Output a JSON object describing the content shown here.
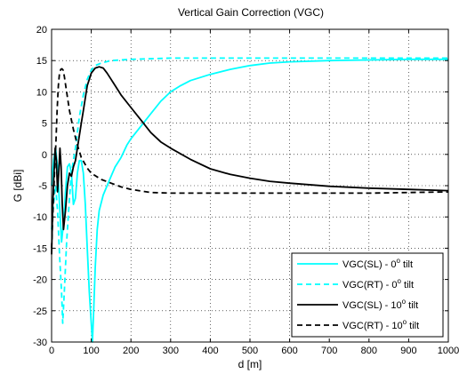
{
  "chart_data": {
    "type": "line",
    "title": "Vertical Gain Correction (VGC)",
    "xlabel": "d [m]",
    "ylabel": "G [dBi]",
    "xlim": [
      0,
      1000
    ],
    "ylim": [
      -30,
      20
    ],
    "xticks": [
      0,
      100,
      200,
      300,
      400,
      500,
      600,
      700,
      800,
      900,
      1000
    ],
    "yticks": [
      -30,
      -25,
      -20,
      -15,
      -10,
      -5,
      0,
      5,
      10,
      15,
      20
    ],
    "grid": true,
    "legend_position": "bottom-right",
    "series": [
      {
        "name": "VGC(SL) - 0",
        "name_sup": "o",
        "name_suffix": " tilt",
        "color": "#00ffff",
        "dash": "solid",
        "points": [
          [
            0,
            -5
          ],
          [
            5,
            -1
          ],
          [
            10,
            1
          ],
          [
            15,
            -2
          ],
          [
            20,
            -8
          ],
          [
            25,
            -14
          ],
          [
            30,
            -11
          ],
          [
            35,
            -6
          ],
          [
            40,
            -2
          ],
          [
            45,
            -1.5
          ],
          [
            50,
            -3
          ],
          [
            55,
            -8
          ],
          [
            60,
            -7
          ],
          [
            65,
            -3
          ],
          [
            70,
            -1
          ],
          [
            75,
            -1
          ],
          [
            80,
            -3
          ],
          [
            85,
            -8
          ],
          [
            90,
            -15
          ],
          [
            95,
            -22
          ],
          [
            100,
            -27
          ],
          [
            103,
            -30
          ],
          [
            106,
            -25
          ],
          [
            110,
            -18
          ],
          [
            115,
            -12
          ],
          [
            120,
            -9
          ],
          [
            130,
            -6.5
          ],
          [
            140,
            -5
          ],
          [
            150,
            -3.5
          ],
          [
            160,
            -2
          ],
          [
            175,
            -0.5
          ],
          [
            190,
            1.5
          ],
          [
            200,
            2.5
          ],
          [
            225,
            4.5
          ],
          [
            250,
            6.5
          ],
          [
            275,
            8.5
          ],
          [
            300,
            10
          ],
          [
            325,
            11
          ],
          [
            350,
            11.8
          ],
          [
            400,
            12.8
          ],
          [
            450,
            13.6
          ],
          [
            500,
            14.2
          ],
          [
            550,
            14.6
          ],
          [
            600,
            14.8
          ],
          [
            700,
            15
          ],
          [
            800,
            15.1
          ],
          [
            900,
            15.2
          ],
          [
            1000,
            15.2
          ]
        ]
      },
      {
        "name": "VGC(RT) - 0",
        "name_sup": "o",
        "name_suffix": " tilt",
        "color": "#00ffff",
        "dash": "dashed",
        "points": [
          [
            0,
            -12
          ],
          [
            5,
            -8
          ],
          [
            10,
            -5
          ],
          [
            15,
            -9
          ],
          [
            20,
            -16
          ],
          [
            25,
            -22
          ],
          [
            28,
            -27
          ],
          [
            32,
            -22
          ],
          [
            38,
            -14
          ],
          [
            45,
            -7
          ],
          [
            50,
            -3
          ],
          [
            55,
            -1
          ],
          [
            60,
            1
          ],
          [
            65,
            3.5
          ],
          [
            70,
            6
          ],
          [
            80,
            9.5
          ],
          [
            90,
            12
          ],
          [
            100,
            13.5
          ],
          [
            110,
            14.2
          ],
          [
            125,
            14.6
          ],
          [
            150,
            15
          ],
          [
            200,
            15.2
          ],
          [
            300,
            15.4
          ],
          [
            400,
            15.4
          ],
          [
            500,
            15.4
          ],
          [
            600,
            15.4
          ],
          [
            700,
            15.4
          ],
          [
            800,
            15.4
          ],
          [
            900,
            15.4
          ],
          [
            1000,
            15.4
          ]
        ]
      },
      {
        "name": "VGC(SL) - 10",
        "name_sup": "o",
        "name_suffix": " tilt",
        "color": "#000000",
        "dash": "solid",
        "points": [
          [
            0,
            -16
          ],
          [
            3,
            -8
          ],
          [
            6,
            -3
          ],
          [
            9,
            1
          ],
          [
            12,
            -1
          ],
          [
            15,
            -6
          ],
          [
            18,
            -3
          ],
          [
            21,
            1
          ],
          [
            24,
            -2
          ],
          [
            27,
            -8
          ],
          [
            30,
            -12
          ],
          [
            35,
            -9
          ],
          [
            40,
            -5
          ],
          [
            45,
            -3
          ],
          [
            50,
            -3.5
          ],
          [
            55,
            -2
          ],
          [
            60,
            -1
          ],
          [
            65,
            1
          ],
          [
            70,
            3
          ],
          [
            75,
            5
          ],
          [
            80,
            7
          ],
          [
            85,
            9
          ],
          [
            90,
            11
          ],
          [
            95,
            12
          ],
          [
            100,
            13
          ],
          [
            110,
            13.8
          ],
          [
            120,
            14
          ],
          [
            130,
            13.8
          ],
          [
            140,
            13
          ],
          [
            150,
            12
          ],
          [
            175,
            9.5
          ],
          [
            200,
            7.5
          ],
          [
            225,
            5.5
          ],
          [
            250,
            3.5
          ],
          [
            275,
            2
          ],
          [
            300,
            1
          ],
          [
            350,
            -0.8
          ],
          [
            400,
            -2.3
          ],
          [
            450,
            -3.2
          ],
          [
            500,
            -3.8
          ],
          [
            550,
            -4.3
          ],
          [
            600,
            -4.6
          ],
          [
            700,
            -5.1
          ],
          [
            800,
            -5.4
          ],
          [
            900,
            -5.6
          ],
          [
            1000,
            -5.8
          ]
        ]
      },
      {
        "name": "VGC(RT) - 10",
        "name_sup": "o",
        "name_suffix": " tilt",
        "color": "#000000",
        "dash": "dashed",
        "points": [
          [
            0,
            -15
          ],
          [
            4,
            -8
          ],
          [
            8,
            -2
          ],
          [
            11,
            2
          ],
          [
            14,
            7
          ],
          [
            17,
            11
          ],
          [
            20,
            13
          ],
          [
            23,
            13.6
          ],
          [
            26,
            13.7
          ],
          [
            29,
            13.5
          ],
          [
            32,
            12.5
          ],
          [
            38,
            10
          ],
          [
            45,
            7
          ],
          [
            55,
            4
          ],
          [
            65,
            1.5
          ],
          [
            75,
            -0.5
          ],
          [
            90,
            -2.2
          ],
          [
            100,
            -3
          ],
          [
            125,
            -4
          ],
          [
            150,
            -4.6
          ],
          [
            175,
            -5.2
          ],
          [
            200,
            -5.6
          ],
          [
            250,
            -6.1
          ],
          [
            300,
            -6.2
          ],
          [
            400,
            -6.2
          ],
          [
            500,
            -6.2
          ],
          [
            600,
            -6.2
          ],
          [
            700,
            -6.2
          ],
          [
            800,
            -6.2
          ],
          [
            900,
            -6.1
          ],
          [
            1000,
            -6.0
          ]
        ]
      }
    ]
  }
}
